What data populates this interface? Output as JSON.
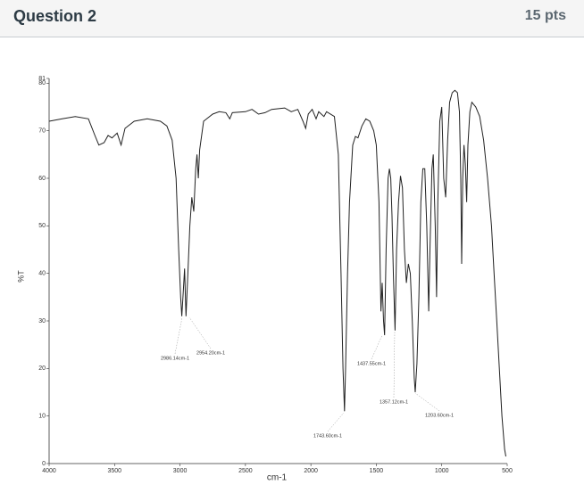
{
  "header": {
    "title": "Question 2",
    "points": "15 pts"
  },
  "chart_data": {
    "type": "line",
    "xlabel": "cm-1",
    "ylabel": "%T",
    "color": "#222222",
    "xlim": [
      4000,
      500
    ],
    "ylim": [
      0,
      81
    ],
    "xticks": [
      4000,
      3500,
      3000,
      2500,
      2000,
      1500,
      1000,
      500
    ],
    "yticks": [
      0,
      10,
      20,
      30,
      40,
      50,
      60,
      70,
      80,
      81
    ],
    "annotations": [
      "2986.14cm-1",
      "2954.20cm-1",
      "1743.60cm-1",
      "1437.55cm-1",
      "1357.12cm-1",
      "1203.60cm-1"
    ],
    "x": [
      4000,
      3900,
      3800,
      3700,
      3650,
      3620,
      3580,
      3550,
      3520,
      3500,
      3480,
      3450,
      3420,
      3350,
      3250,
      3150,
      3100,
      3060,
      3030,
      3010,
      2995,
      2986,
      2975,
      2965,
      2954,
      2940,
      2925,
      2910,
      2895,
      2880,
      2870,
      2860,
      2850,
      2820,
      2750,
      2700,
      2650,
      2620,
      2600,
      2500,
      2450,
      2400,
      2350,
      2300,
      2200,
      2150,
      2100,
      2060,
      2040,
      2020,
      1990,
      1960,
      1940,
      1900,
      1880,
      1820,
      1790,
      1770,
      1755,
      1743,
      1735,
      1720,
      1705,
      1680,
      1660,
      1640,
      1610,
      1580,
      1550,
      1520,
      1500,
      1480,
      1465,
      1455,
      1445,
      1437,
      1425,
      1410,
      1400,
      1390,
      1380,
      1370,
      1357,
      1345,
      1330,
      1315,
      1300,
      1285,
      1270,
      1255,
      1240,
      1225,
      1210,
      1203,
      1190,
      1175,
      1160,
      1145,
      1130,
      1115,
      1100,
      1090,
      1075,
      1065,
      1050,
      1040,
      1030,
      1015,
      1000,
      985,
      970,
      955,
      940,
      920,
      900,
      880,
      865,
      855,
      848,
      840,
      830,
      820,
      810,
      800,
      785,
      770,
      740,
      710,
      680,
      650,
      620,
      600,
      580,
      560,
      540,
      520,
      510
    ],
    "values": [
      72,
      72.5,
      73,
      72.5,
      69,
      67,
      67.5,
      69,
      68.5,
      69,
      69.5,
      67,
      70.5,
      72,
      72.5,
      72,
      71,
      68,
      60,
      45,
      35,
      31,
      36,
      41,
      31,
      40,
      50,
      56,
      53,
      62,
      65,
      60,
      66,
      72,
      73.5,
      74,
      73.8,
      72.5,
      73.8,
      74,
      74.5,
      73.5,
      73.8,
      74.5,
      74.8,
      74,
      74.5,
      72,
      70.5,
      73.5,
      74.5,
      72.5,
      74,
      73,
      74,
      73,
      65,
      40,
      20,
      11,
      20,
      40,
      55,
      67,
      68.8,
      68.5,
      71,
      72.5,
      72,
      70,
      67,
      55,
      32,
      38,
      30,
      27,
      45,
      60,
      62,
      60,
      52,
      40,
      28,
      45,
      55,
      60.5,
      58,
      45,
      38,
      42,
      40,
      30,
      18,
      15,
      21,
      35,
      55,
      62,
      62,
      50,
      32,
      45,
      62,
      65,
      50,
      35,
      55,
      72,
      75,
      60,
      56,
      68,
      76,
      78,
      78.5,
      78,
      74,
      60,
      42,
      60,
      67,
      63,
      55,
      67,
      74,
      76,
      75,
      73,
      68,
      60,
      50,
      40,
      30,
      20,
      10,
      3,
      1.5
    ]
  }
}
